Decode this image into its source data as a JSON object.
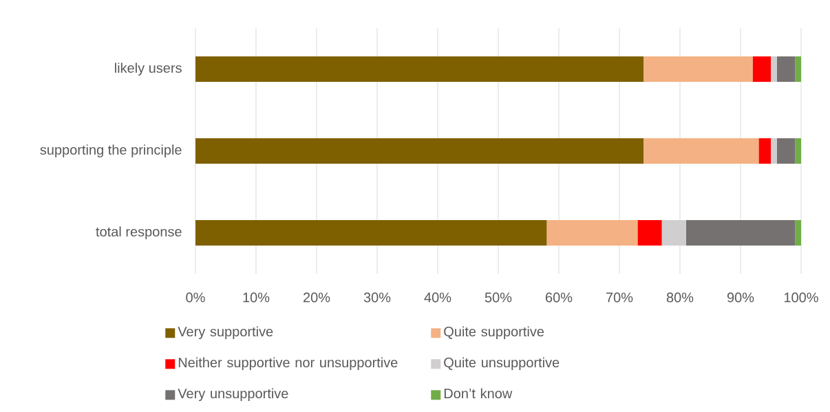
{
  "chart_data": {
    "type": "bar",
    "orientation": "horizontal",
    "stacked": true,
    "categories": [
      "likely users",
      "supporting the principle",
      "total response"
    ],
    "series": [
      {
        "name": "Very supportive",
        "color": "#7f6000",
        "values": [
          74,
          74,
          58
        ]
      },
      {
        "name": "Quite supportive",
        "color": "#f4b183",
        "values": [
          18,
          19,
          15
        ]
      },
      {
        "name": "Neither supportive nor unsupportive",
        "color": "#ff0000",
        "values": [
          3,
          2,
          4
        ]
      },
      {
        "name": "Quite unsupportive",
        "color": "#d0cece",
        "values": [
          1,
          1,
          4
        ]
      },
      {
        "name": "Very unsupportive",
        "color": "#767171",
        "values": [
          3,
          3,
          18
        ]
      },
      {
        "name": "Don’t know",
        "color": "#70ad47",
        "values": [
          1,
          1,
          1
        ]
      }
    ],
    "xlim": [
      0,
      100
    ],
    "xticks": [
      {
        "value": 0,
        "label": "0%"
      },
      {
        "value": 10,
        "label": "10%"
      },
      {
        "value": 20,
        "label": "20%"
      },
      {
        "value": 30,
        "label": "30%"
      },
      {
        "value": 40,
        "label": "40%"
      },
      {
        "value": 50,
        "label": "50%"
      },
      {
        "value": 60,
        "label": "60%"
      },
      {
        "value": 70,
        "label": "70%"
      },
      {
        "value": 80,
        "label": "80%"
      },
      {
        "value": 90,
        "label": "90%"
      },
      {
        "value": 100,
        "label": "100%"
      }
    ],
    "grid": "x",
    "legend": "bottom"
  }
}
